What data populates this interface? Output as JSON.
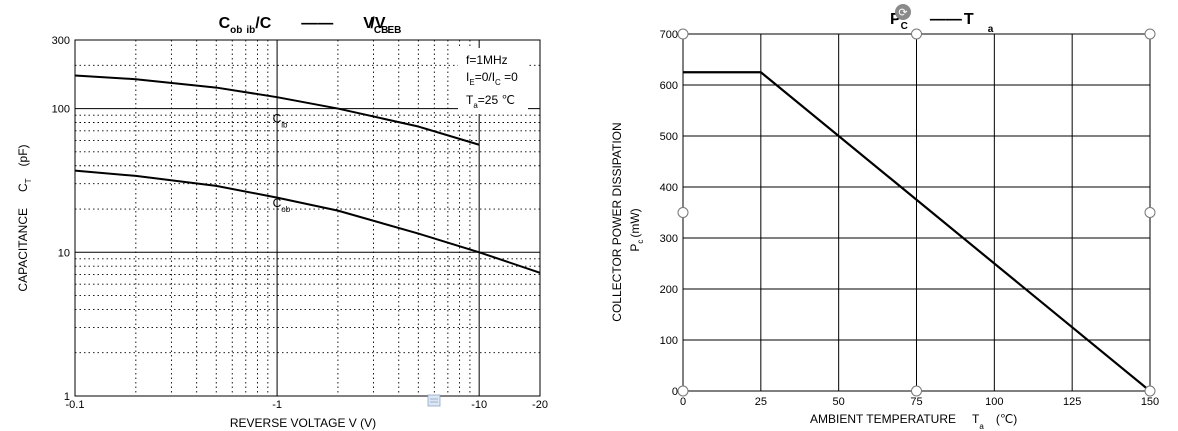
{
  "chart_data": [
    {
      "type": "line",
      "title": {
        "main1": "C",
        "sub1": "ob",
        "sub2": "ib",
        "main2": "/C",
        "dash": "——",
        "main3": "V",
        "sub3": "CB",
        "main4": "/V",
        "sub4": "EB"
      },
      "xlabel": "REVERSE VOLTAGE V (V)",
      "ylabel": {
        "main": "CAPACITANCE",
        "sym": "C",
        "sub": "T",
        "unit": "(pF)"
      },
      "xscale": "log",
      "yscale": "log",
      "xlim": [
        -0.1,
        -20
      ],
      "ylim": [
        1,
        300
      ],
      "xticks": [
        {
          "value": 0.1,
          "label": "-0.1"
        },
        {
          "value": 1,
          "label": "-1"
        },
        {
          "value": 10,
          "label": "-10"
        },
        {
          "value": 20,
          "label": "-20"
        }
      ],
      "yticks": [
        {
          "value": 1,
          "label": "1"
        },
        {
          "value": 10,
          "label": "10"
        },
        {
          "value": 100,
          "label": "100"
        },
        {
          "value": 300,
          "label": "300"
        }
      ],
      "conditions": {
        "line1": "f=1MHz",
        "l2a": "I",
        "l2sa": "E",
        "l2b": "=0/I",
        "l2sb": "C",
        "l2c": " =0",
        "l3a": "T",
        "l3s": "a",
        "l3b": "=25 ℃"
      },
      "series": [
        {
          "label": "C",
          "label_sub": "ib",
          "x": [
            -0.1,
            -0.2,
            -0.5,
            -1,
            -2,
            -5,
            -10
          ],
          "y": [
            170,
            160,
            140,
            120,
            100,
            75,
            56
          ]
        },
        {
          "label": "C",
          "label_sub": "ob",
          "x": [
            -0.1,
            -0.2,
            -0.5,
            -1,
            -2,
            -5,
            -10,
            -20
          ],
          "y": [
            37,
            34,
            29,
            24,
            19.5,
            13.5,
            10,
            7.2
          ]
        }
      ],
      "grid": true
    },
    {
      "type": "line",
      "title": {
        "main1": "P",
        "sub1": "C",
        "dash": "——",
        "main2": "T",
        "sub2": "a"
      },
      "xlabel": {
        "main": "AMBIENT TEMPERATURE",
        "sym": "T",
        "sub": "a",
        "unit": "(℃)"
      },
      "ylabel": {
        "main": "COLLECTOR POWER DISSIPATION",
        "sym": "P",
        "sub": "c",
        "unit": "(mW)"
      },
      "xlim": [
        0,
        150
      ],
      "ylim": [
        0,
        700
      ],
      "xticks": [
        0,
        25,
        50,
        75,
        100,
        125,
        150
      ],
      "yticks": [
        0,
        100,
        200,
        300,
        400,
        500,
        600,
        700
      ],
      "series": [
        {
          "x": [
            0,
            25,
            150
          ],
          "y": [
            625,
            625,
            0
          ]
        }
      ],
      "grid": true
    }
  ]
}
